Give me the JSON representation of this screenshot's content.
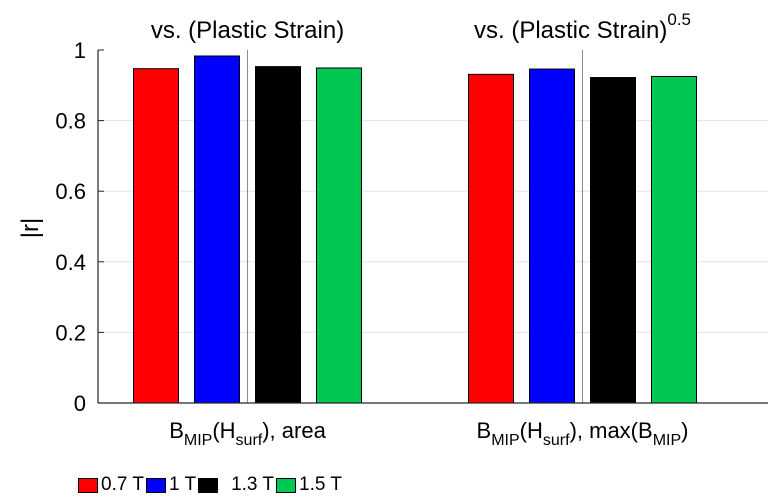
{
  "chart_data": {
    "type": "bar",
    "ylabel": "|r|",
    "ylim": [
      0,
      1
    ],
    "yticks": [
      "0",
      "0.2",
      "0.4",
      "0.6",
      "0.8",
      "1"
    ],
    "grid": "y-major",
    "groups": [
      {
        "heading": "vs. (Plastic Strain)",
        "heading_exponent": "",
        "category_parts": [
          {
            "text": "B",
            "sub": ""
          },
          {
            "text": "MIP",
            "sub": "sub"
          },
          {
            "text": "(H",
            "sub": ""
          },
          {
            "text": "surf",
            "sub": "sub"
          },
          {
            "text": "), area",
            "sub": ""
          }
        ]
      },
      {
        "heading": "vs. (Plastic Strain)",
        "heading_exponent": "0.5",
        "category_parts": [
          {
            "text": "B",
            "sub": ""
          },
          {
            "text": "MIP",
            "sub": "sub"
          },
          {
            "text": "(H",
            "sub": ""
          },
          {
            "text": "surf",
            "sub": "sub"
          },
          {
            "text": "), max(B",
            "sub": ""
          },
          {
            "text": "MIP",
            "sub": "sub"
          },
          {
            "text": ")",
            "sub": ""
          }
        ]
      }
    ],
    "series": [
      {
        "name": "0.7 T",
        "color": "#ff0000",
        "values": [
          0.947,
          0.931
        ]
      },
      {
        "name": "1 T",
        "color": "#0000ff",
        "values": [
          0.983,
          0.946
        ]
      },
      {
        "name": "1.3 T",
        "color": "#000000",
        "values": [
          0.953,
          0.922
        ]
      },
      {
        "name": "1.5 T",
        "color": "#00c853",
        "values": [
          0.949,
          0.925
        ]
      }
    ],
    "legend_position": "bottom-left"
  }
}
